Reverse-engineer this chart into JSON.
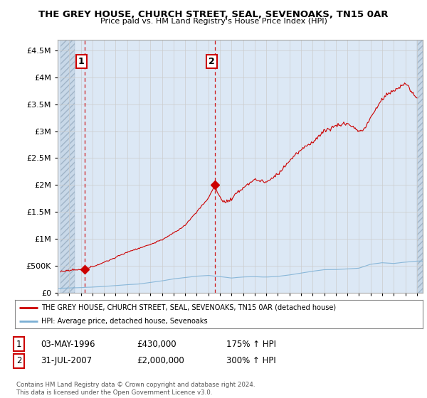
{
  "title": "THE GREY HOUSE, CHURCH STREET, SEAL, SEVENOAKS, TN15 0AR",
  "subtitle": "Price paid vs. HM Land Registry's House Price Index (HPI)",
  "ylim": [
    0,
    4700000
  ],
  "yticks": [
    0,
    500000,
    1000000,
    1500000,
    2000000,
    2500000,
    3000000,
    3500000,
    4000000,
    4500000
  ],
  "ytick_labels": [
    "£0",
    "£500K",
    "£1M",
    "£1.5M",
    "£2M",
    "£2.5M",
    "£3M",
    "£3.5M",
    "£4M",
    "£4.5M"
  ],
  "xlim_start": 1994.25,
  "xlim_end": 2025.5,
  "sale1_x": 1996.34,
  "sale1_y": 430000,
  "sale2_x": 2007.58,
  "sale2_y": 2000000,
  "sale1_label": "1",
  "sale2_label": "2",
  "legend_line1": "THE GREY HOUSE, CHURCH STREET, SEAL, SEVENOAKS, TN15 0AR (detached house)",
  "legend_line2": "HPI: Average price, detached house, Sevenoaks",
  "table_row1": [
    "1",
    "03-MAY-1996",
    "£430,000",
    "175% ↑ HPI"
  ],
  "table_row2": [
    "2",
    "31-JUL-2007",
    "£2,000,000",
    "300% ↑ HPI"
  ],
  "footer": "Contains HM Land Registry data © Crown copyright and database right 2024.\nThis data is licensed under the Open Government Licence v3.0.",
  "house_color": "#cc0000",
  "hpi_color": "#7bafd4",
  "vline_color": "#cc0000",
  "grid_color": "#cccccc",
  "bg_color": "#dce8f5",
  "hatch_end_year": 1995.5
}
